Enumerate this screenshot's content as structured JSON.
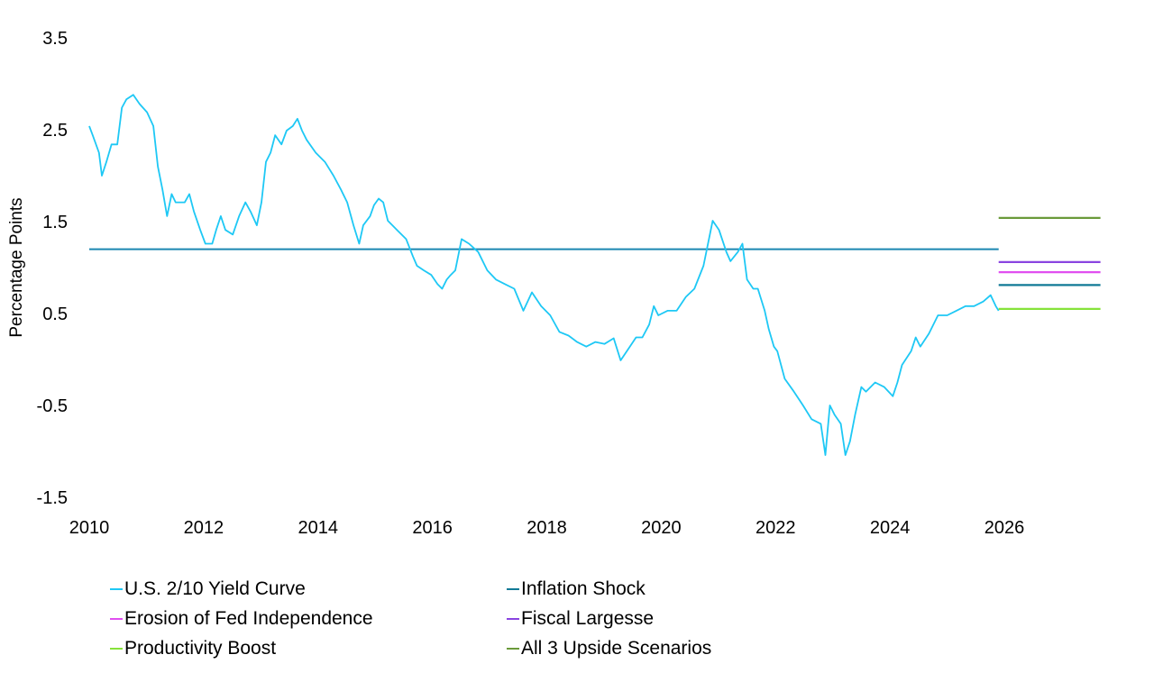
{
  "chart_data": {
    "type": "line",
    "title": "",
    "xlabel": "",
    "ylabel": "Percentage Points",
    "xlim": [
      2010,
      2027.7
    ],
    "ylim": [
      -1.5,
      3.5
    ],
    "x_ticks": [
      "2010",
      "2012",
      "2014",
      "2016",
      "2018",
      "2020",
      "2022",
      "2024",
      "2026"
    ],
    "y_ticks": [
      "3.5",
      "2.5",
      "1.5",
      "0.5",
      "-0.5",
      "-1.5"
    ],
    "grid": false,
    "legend_placement": "bottom",
    "series": [
      {
        "name": "U.S. 2/10 Yield Curve",
        "color": "#1ec8f5",
        "points": [
          [
            2010.0,
            2.54
          ],
          [
            2010.06,
            2.44
          ],
          [
            2010.17,
            2.25
          ],
          [
            2010.22,
            2.0
          ],
          [
            2010.3,
            2.15
          ],
          [
            2010.39,
            2.34
          ],
          [
            2010.49,
            2.34
          ],
          [
            2010.57,
            2.74
          ],
          [
            2010.65,
            2.83
          ],
          [
            2010.77,
            2.88
          ],
          [
            2010.88,
            2.78
          ],
          [
            2011.01,
            2.69
          ],
          [
            2011.12,
            2.54
          ],
          [
            2011.2,
            2.1
          ],
          [
            2011.28,
            1.85
          ],
          [
            2011.36,
            1.56
          ],
          [
            2011.44,
            1.8
          ],
          [
            2011.51,
            1.71
          ],
          [
            2011.67,
            1.71
          ],
          [
            2011.75,
            1.8
          ],
          [
            2011.83,
            1.61
          ],
          [
            2011.94,
            1.41
          ],
          [
            2012.03,
            1.26
          ],
          [
            2012.15,
            1.26
          ],
          [
            2012.22,
            1.41
          ],
          [
            2012.3,
            1.56
          ],
          [
            2012.38,
            1.41
          ],
          [
            2012.51,
            1.36
          ],
          [
            2012.62,
            1.56
          ],
          [
            2012.73,
            1.71
          ],
          [
            2012.82,
            1.61
          ],
          [
            2012.93,
            1.46
          ],
          [
            2013.01,
            1.71
          ],
          [
            2013.09,
            2.15
          ],
          [
            2013.17,
            2.25
          ],
          [
            2013.25,
            2.44
          ],
          [
            2013.36,
            2.34
          ],
          [
            2013.45,
            2.49
          ],
          [
            2013.56,
            2.54
          ],
          [
            2013.64,
            2.62
          ],
          [
            2013.72,
            2.49
          ],
          [
            2013.8,
            2.39
          ],
          [
            2013.96,
            2.25
          ],
          [
            2014.12,
            2.15
          ],
          [
            2014.27,
            2.0
          ],
          [
            2014.4,
            1.85
          ],
          [
            2014.51,
            1.71
          ],
          [
            2014.62,
            1.46
          ],
          [
            2014.72,
            1.26
          ],
          [
            2014.79,
            1.46
          ],
          [
            2014.91,
            1.56
          ],
          [
            2014.98,
            1.68
          ],
          [
            2015.06,
            1.75
          ],
          [
            2015.14,
            1.71
          ],
          [
            2015.22,
            1.51
          ],
          [
            2015.38,
            1.41
          ],
          [
            2015.54,
            1.31
          ],
          [
            2015.66,
            1.12
          ],
          [
            2015.73,
            1.02
          ],
          [
            2015.85,
            0.97
          ],
          [
            2015.98,
            0.92
          ],
          [
            2016.09,
            0.82
          ],
          [
            2016.17,
            0.77
          ],
          [
            2016.25,
            0.87
          ],
          [
            2016.32,
            0.92
          ],
          [
            2016.4,
            0.97
          ],
          [
            2016.51,
            1.31
          ],
          [
            2016.64,
            1.26
          ],
          [
            2016.8,
            1.17
          ],
          [
            2016.96,
            0.97
          ],
          [
            2017.11,
            0.87
          ],
          [
            2017.27,
            0.82
          ],
          [
            2017.43,
            0.77
          ],
          [
            2017.59,
            0.53
          ],
          [
            2017.74,
            0.73
          ],
          [
            2017.9,
            0.58
          ],
          [
            2018.06,
            0.48
          ],
          [
            2018.22,
            0.3
          ],
          [
            2018.38,
            0.26
          ],
          [
            2018.53,
            0.19
          ],
          [
            2018.69,
            0.14
          ],
          [
            2018.85,
            0.19
          ],
          [
            2019.01,
            0.17
          ],
          [
            2019.17,
            0.23
          ],
          [
            2019.29,
            -0.01
          ],
          [
            2019.4,
            0.09
          ],
          [
            2019.56,
            0.24
          ],
          [
            2019.67,
            0.24
          ],
          [
            2019.79,
            0.38
          ],
          [
            2019.87,
            0.58
          ],
          [
            2019.95,
            0.48
          ],
          [
            2020.11,
            0.53
          ],
          [
            2020.27,
            0.53
          ],
          [
            2020.43,
            0.68
          ],
          [
            2020.58,
            0.77
          ],
          [
            2020.74,
            1.02
          ],
          [
            2020.9,
            1.51
          ],
          [
            2021.01,
            1.41
          ],
          [
            2021.14,
            1.17
          ],
          [
            2021.21,
            1.07
          ],
          [
            2021.34,
            1.17
          ],
          [
            2021.42,
            1.26
          ],
          [
            2021.5,
            0.87
          ],
          [
            2021.61,
            0.77
          ],
          [
            2021.69,
            0.77
          ],
          [
            2021.81,
            0.53
          ],
          [
            2021.88,
            0.33
          ],
          [
            2021.97,
            0.14
          ],
          [
            2022.03,
            0.09
          ],
          [
            2022.16,
            -0.21
          ],
          [
            2022.32,
            -0.35
          ],
          [
            2022.48,
            -0.5
          ],
          [
            2022.63,
            -0.65
          ],
          [
            2022.79,
            -0.7
          ],
          [
            2022.87,
            -1.04
          ],
          [
            2022.95,
            -0.5
          ],
          [
            2023.03,
            -0.6
          ],
          [
            2023.14,
            -0.7
          ],
          [
            2023.22,
            -1.04
          ],
          [
            2023.3,
            -0.89
          ],
          [
            2023.39,
            -0.6
          ],
          [
            2023.5,
            -0.3
          ],
          [
            2023.58,
            -0.35
          ],
          [
            2023.74,
            -0.25
          ],
          [
            2023.9,
            -0.3
          ],
          [
            2024.05,
            -0.4
          ],
          [
            2024.13,
            -0.25
          ],
          [
            2024.21,
            -0.06
          ],
          [
            2024.37,
            0.09
          ],
          [
            2024.45,
            0.24
          ],
          [
            2024.53,
            0.14
          ],
          [
            2024.68,
            0.28
          ],
          [
            2024.84,
            0.48
          ],
          [
            2025.0,
            0.48
          ],
          [
            2025.16,
            0.53
          ],
          [
            2025.32,
            0.58
          ],
          [
            2025.47,
            0.58
          ],
          [
            2025.63,
            0.63
          ],
          [
            2025.76,
            0.7
          ],
          [
            2025.85,
            0.58
          ],
          [
            2025.9,
            0.53
          ]
        ]
      },
      {
        "name": "Inflation Shock",
        "color": "#117a96",
        "points": [
          [
            2025.9,
            0.81
          ],
          [
            2027.68,
            0.81
          ]
        ]
      },
      {
        "name": "Erosion of Fed Independence",
        "color": "#e04ff0",
        "points": [
          [
            2025.9,
            0.95
          ],
          [
            2027.68,
            0.95
          ]
        ]
      },
      {
        "name": "Fiscal Largesse",
        "color": "#8a44e0",
        "points": [
          [
            2025.9,
            1.06
          ],
          [
            2027.68,
            1.06
          ]
        ]
      },
      {
        "name": "Productivity Boost",
        "color": "#86e23a",
        "points": [
          [
            2025.9,
            0.55
          ],
          [
            2027.68,
            0.55
          ]
        ]
      },
      {
        "name": "All 3 Upside Scenarios",
        "color": "#6a9a3a",
        "points": [
          [
            2025.9,
            1.54
          ],
          [
            2027.68,
            1.54
          ]
        ]
      }
    ],
    "reference_lines": [
      {
        "color": "#1a86b0",
        "points": [
          [
            2010.0,
            1.2
          ],
          [
            2025.9,
            1.2
          ]
        ]
      }
    ]
  }
}
